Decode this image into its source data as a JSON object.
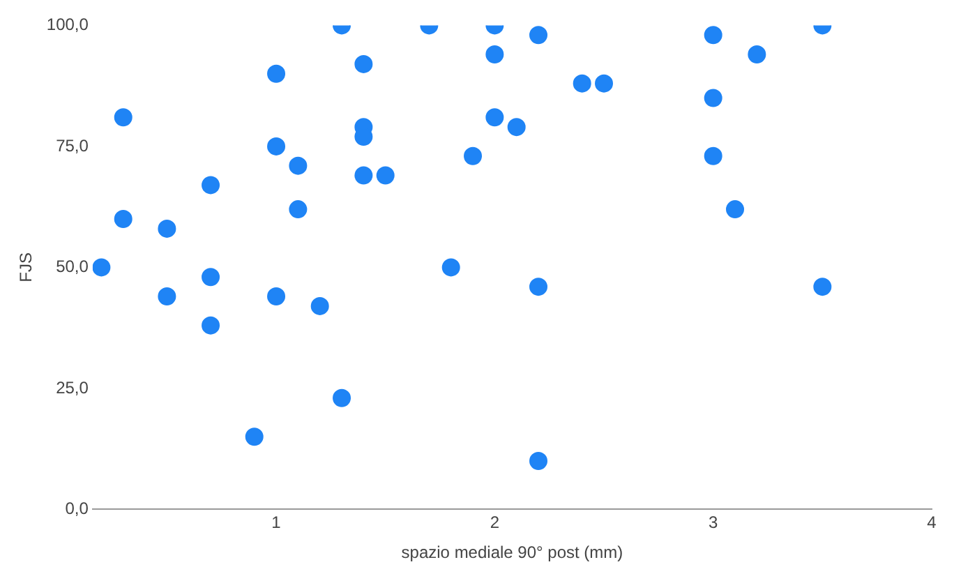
{
  "chart_data": {
    "type": "scatter",
    "xlabel": "spazio mediale 90° post (mm)",
    "ylabel": "FJS",
    "color": "#1f84f5",
    "marker": "circle",
    "grid": false,
    "x": [
      0.2,
      0.3,
      0.3,
      0.5,
      0.5,
      0.7,
      0.7,
      0.7,
      0.9,
      1.0,
      1.0,
      1.0,
      1.1,
      1.1,
      1.2,
      1.3,
      1.3,
      1.4,
      1.4,
      1.4,
      1.4,
      1.5,
      1.7,
      1.8,
      1.9,
      2.0,
      2.0,
      2.0,
      2.1,
      2.2,
      2.2,
      2.2,
      2.4,
      2.5,
      3.0,
      3.0,
      3.0,
      3.1,
      3.2,
      3.5,
      3.5
    ],
    "values": [
      50,
      81,
      60,
      58,
      44,
      67,
      48,
      38,
      15,
      90,
      75,
      44,
      71,
      62,
      42,
      100,
      23,
      92,
      79,
      77,
      69,
      69,
      100,
      50,
      73,
      100,
      94,
      81,
      79,
      98,
      46,
      10,
      88,
      88,
      98,
      85,
      73,
      62,
      94,
      100,
      46
    ],
    "xlim": [
      0.16,
      4
    ],
    "xticks": [
      1,
      2,
      3,
      4
    ],
    "ylim": [
      0,
      100
    ],
    "yticks": [
      {
        "value": 0,
        "label": "0,0"
      },
      {
        "value": 25,
        "label": "25,0"
      },
      {
        "value": 50,
        "label": "50,0"
      },
      {
        "value": 75,
        "label": "75,0"
      },
      {
        "value": 100,
        "label": "100,0"
      }
    ]
  }
}
